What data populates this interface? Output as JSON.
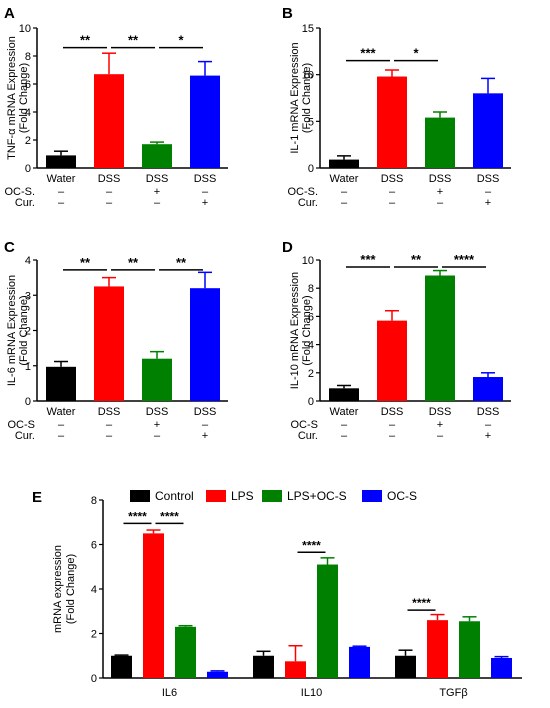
{
  "colors": {
    "water": "#000000",
    "dss": "#ff0000",
    "ocs": "#008000",
    "cur": "#0000ff"
  },
  "chart_data": [
    {
      "panel": "A",
      "type": "bar",
      "ylabel_line1": "TNF-α mRNA Expression",
      "ylabel_line2": "(Fold Change)",
      "ylim": [
        0,
        10
      ],
      "yticks": [
        "0",
        "2",
        "4",
        "6",
        "8",
        "10"
      ],
      "ytick_values": [
        0,
        2,
        4,
        6,
        8,
        10
      ],
      "categories": [
        "Water",
        "DSS",
        "DSS",
        "DSS"
      ],
      "values": [
        0.9,
        6.7,
        1.7,
        6.6
      ],
      "errors": [
        0.3,
        1.5,
        0.15,
        1.0
      ],
      "treatments": [
        {
          "label": "OC-S.",
          "signs": [
            "–",
            "–",
            "+",
            "–"
          ]
        },
        {
          "label": "Cur.",
          "signs": [
            "–",
            "–",
            "–",
            "+"
          ]
        }
      ],
      "significance": [
        {
          "from": 0,
          "to": 1,
          "label": "**",
          "y": 8.6
        },
        {
          "from": 1,
          "to": 2,
          "label": "**",
          "y": 8.6
        },
        {
          "from": 2,
          "to": 3,
          "label": "*",
          "y": 8.6
        }
      ]
    },
    {
      "panel": "B",
      "type": "bar",
      "ylabel_line1": "IL-1 mRNA Expression",
      "ylabel_line2": "(Fold Change)",
      "ylim": [
        0,
        15
      ],
      "yticks": [
        "0",
        "5",
        "10",
        "15"
      ],
      "ytick_values": [
        0,
        5,
        10,
        15
      ],
      "categories": [
        "Water",
        "DSS",
        "DSS",
        "DSS"
      ],
      "values": [
        0.9,
        9.8,
        5.4,
        8.0
      ],
      "errors": [
        0.4,
        0.7,
        0.6,
        1.6
      ],
      "treatments": [
        {
          "label": "OC-S.",
          "signs": [
            "–",
            "–",
            "+",
            "–"
          ]
        },
        {
          "label": "Cur.",
          "signs": [
            "–",
            "–",
            "–",
            "+"
          ]
        }
      ],
      "significance": [
        {
          "from": 0,
          "to": 1,
          "label": "***",
          "y": 11.5
        },
        {
          "from": 1,
          "to": 2,
          "label": "*",
          "y": 11.5
        }
      ]
    },
    {
      "panel": "C",
      "type": "bar",
      "ylabel_line1": "IL-6 mRNA Expression",
      "ylabel_line2": "(Fold Change)",
      "ylim": [
        0,
        4
      ],
      "yticks": [
        "0",
        "1",
        "2",
        "3",
        "4"
      ],
      "ytick_values": [
        0,
        1,
        2,
        3,
        4
      ],
      "categories": [
        "Water",
        "DSS",
        "DSS",
        "DSS"
      ],
      "values": [
        0.97,
        3.25,
        1.2,
        3.2
      ],
      "errors": [
        0.15,
        0.25,
        0.2,
        0.45
      ],
      "treatments": [
        {
          "label": "OC-S",
          "signs": [
            "–",
            "–",
            "+",
            "–"
          ]
        },
        {
          "label": "Cur.",
          "signs": [
            "–",
            "–",
            "–",
            "+"
          ]
        }
      ],
      "significance": [
        {
          "from": 0,
          "to": 1,
          "label": "**",
          "y": 3.72
        },
        {
          "from": 1,
          "to": 2,
          "label": "**",
          "y": 3.72
        },
        {
          "from": 2,
          "to": 3,
          "label": "**",
          "y": 3.72
        }
      ]
    },
    {
      "panel": "D",
      "type": "bar",
      "ylabel_line1": "IL-10 mRNA Expression",
      "ylabel_line2": "(Fold Change)",
      "ylim": [
        0,
        10
      ],
      "yticks": [
        "0",
        "2",
        "4",
        "6",
        "8",
        "10"
      ],
      "ytick_values": [
        0,
        2,
        4,
        6,
        8,
        10
      ],
      "categories": [
        "Water",
        "DSS",
        "DSS",
        "DSS"
      ],
      "values": [
        0.9,
        5.7,
        8.9,
        1.7
      ],
      "errors": [
        0.2,
        0.7,
        0.35,
        0.3
      ],
      "treatments": [
        {
          "label": "OC-S",
          "signs": [
            "–",
            "–",
            "+",
            "–"
          ]
        },
        {
          "label": "Cur.",
          "signs": [
            "–",
            "–",
            "–",
            "+"
          ]
        }
      ],
      "significance": [
        {
          "from": 0,
          "to": 1,
          "label": "***",
          "y": 9.5
        },
        {
          "from": 1,
          "to": 2,
          "label": "**",
          "y": 9.5
        },
        {
          "from": 2,
          "to": 3,
          "label": "****",
          "y": 9.5
        }
      ]
    },
    {
      "panel": "E",
      "type": "bar",
      "ylabel_line1": "mRNA expression",
      "ylabel_line2": "(Fold Change)",
      "ylim": [
        0,
        8
      ],
      "yticks": [
        "0",
        "2",
        "4",
        "6",
        "8"
      ],
      "ytick_values": [
        0,
        2,
        4,
        6,
        8
      ],
      "categories": [
        "IL6",
        "IL10",
        "TGFβ"
      ],
      "legend_position": "top",
      "series": [
        {
          "name": "Control",
          "values": [
            1.0,
            1.0,
            1.0
          ],
          "errors": [
            0.03,
            0.2,
            0.25
          ]
        },
        {
          "name": "LPS",
          "values": [
            6.5,
            0.75,
            2.6
          ],
          "errors": [
            0.15,
            0.7,
            0.25
          ]
        },
        {
          "name": "LPS+OC-S",
          "values": [
            2.3,
            5.1,
            2.55
          ],
          "errors": [
            0.05,
            0.3,
            0.2
          ]
        },
        {
          "name": "OC-S",
          "values": [
            0.28,
            1.4,
            0.9
          ],
          "errors": [
            0.04,
            0.03,
            0.06
          ]
        }
      ],
      "significance": [
        {
          "group": 0,
          "from": 0,
          "to": 1,
          "label": "****",
          "y": 6.95
        },
        {
          "group": 0,
          "from": 1,
          "to": 2,
          "label": "****",
          "y": 6.95
        },
        {
          "group": 1,
          "from": 1,
          "to": 2,
          "label": "****",
          "y": 5.65
        },
        {
          "group": 2,
          "from": 0,
          "to": 1,
          "label": "****",
          "y": 3.05
        }
      ]
    }
  ]
}
